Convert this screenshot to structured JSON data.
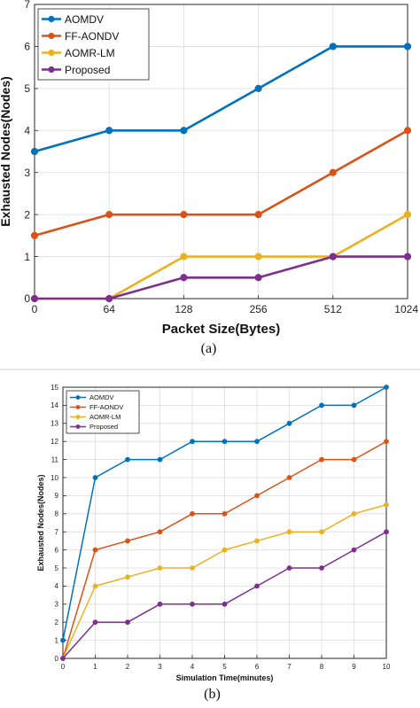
{
  "colors": {
    "AOMDV": "#0072BD",
    "FF-AONDV": "#D95319",
    "AOMR-LM": "#EDB120",
    "Proposed": "#7E2F8E"
  },
  "chart_data": [
    {
      "type": "line",
      "caption": "(a)",
      "xlabel": "Packet Size(Bytes)",
      "ylabel": "Exhausted Nodes(Nodes)",
      "categories": [
        "0",
        "64",
        "128",
        "256",
        "512",
        "1024"
      ],
      "ylim": [
        0,
        7
      ],
      "yticks": [
        0,
        1,
        2,
        3,
        4,
        5,
        6,
        7
      ],
      "grid": true,
      "legend": "top-left",
      "series": [
        {
          "name": "AOMDV",
          "values": [
            3.5,
            4,
            4,
            5,
            6,
            6
          ]
        },
        {
          "name": "FF-AONDV",
          "values": [
            1.5,
            2,
            2,
            2,
            3,
            4
          ]
        },
        {
          "name": "AOMR-LM",
          "values": [
            0,
            0,
            1,
            1,
            1,
            2
          ]
        },
        {
          "name": "Proposed",
          "values": [
            0,
            0,
            0.5,
            0.5,
            1,
            1
          ]
        }
      ]
    },
    {
      "type": "line",
      "caption": "(b)",
      "xlabel": "Simulation Time(minutes)",
      "ylabel": "Exhausted Nodes(Nodes)",
      "x": [
        0,
        1,
        2,
        3,
        4,
        5,
        6,
        7,
        8,
        9,
        10
      ],
      "xlim": [
        0,
        10
      ],
      "ylim": [
        0,
        15
      ],
      "yticks": [
        0,
        1,
        2,
        3,
        4,
        5,
        6,
        7,
        8,
        9,
        10,
        11,
        12,
        13,
        14,
        15
      ],
      "grid": true,
      "legend": "top-left",
      "series": [
        {
          "name": "AOMDV",
          "values": [
            1,
            10,
            11,
            11,
            12,
            12,
            12,
            13,
            14,
            14,
            15
          ]
        },
        {
          "name": "FF-AONDV",
          "values": [
            0,
            6,
            6.5,
            7,
            8,
            8,
            9,
            10,
            11,
            11,
            12
          ]
        },
        {
          "name": "AOMR-LM",
          "values": [
            0,
            4,
            4.5,
            5,
            5,
            6,
            6.5,
            7,
            7,
            8,
            8.5
          ]
        },
        {
          "name": "Proposed",
          "values": [
            0,
            2,
            2,
            3,
            3,
            3,
            4,
            5,
            5,
            6,
            7
          ]
        }
      ]
    }
  ]
}
